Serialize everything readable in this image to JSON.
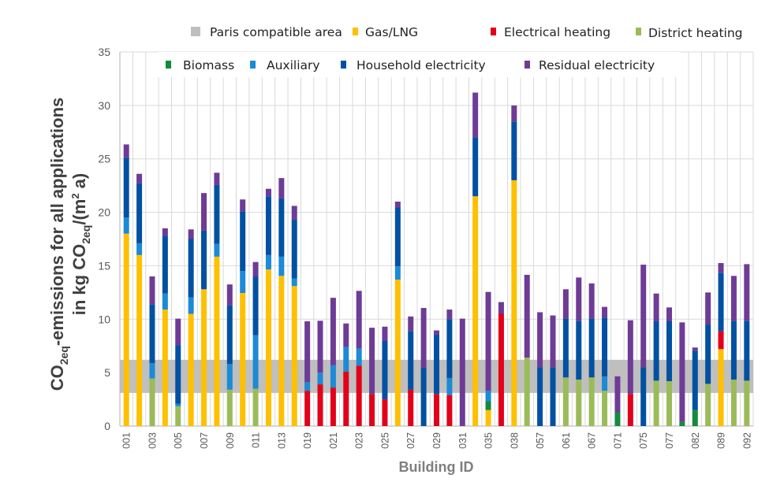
{
  "chart_data": {
    "type": "bar",
    "stacked": true,
    "xlabel": "Building ID",
    "ylabel_line1_parts": [
      "CO",
      "2eq",
      "-emissions for all applications"
    ],
    "ylabel_line2_parts": [
      "in kg CO",
      "2eq",
      "/(m",
      "2",
      " a)"
    ],
    "ylim": [
      0,
      35
    ],
    "yticks": [
      0,
      5,
      10,
      15,
      20,
      25,
      30,
      35
    ],
    "grid": true,
    "legend_placement": "top",
    "paris_compatible_area": {
      "label": "Paris compatible area",
      "range": [
        3.1,
        6.2
      ],
      "color": "#BFBFBF"
    },
    "categories": [
      "001",
      "",
      "003",
      "",
      "005",
      "",
      "007",
      "",
      "009",
      "",
      "011",
      "",
      "013",
      "",
      "019",
      "",
      "021",
      "",
      "023",
      "",
      "025",
      "",
      "027",
      "",
      "029",
      "",
      "031",
      "",
      "035",
      "",
      "038",
      "",
      "057",
      "",
      "061",
      "",
      "067",
      "",
      "071",
      "",
      "075",
      "",
      "077",
      "",
      "082",
      "",
      "089",
      "",
      "092"
    ],
    "series": [
      {
        "name": "Gas/LNG",
        "color": "#FFC000",
        "values": [
          18.0,
          16.0,
          0,
          10.9,
          0,
          10.5,
          12.8,
          15.85,
          0,
          12.45,
          0,
          14.65,
          14.05,
          13.1,
          0,
          0,
          0,
          0,
          0,
          0,
          0,
          13.7,
          0,
          0,
          0,
          0,
          0,
          21.5,
          1.5,
          0,
          23.0,
          0,
          0,
          0,
          0,
          0,
          0,
          0,
          0,
          0,
          0,
          0,
          0,
          0,
          0,
          0,
          7.2,
          0,
          0
        ]
      },
      {
        "name": "Electrical heating",
        "color": "#E2001A",
        "values": [
          0,
          0,
          0,
          0,
          0,
          0,
          0,
          0,
          0,
          0,
          0,
          0,
          0,
          0,
          3.3,
          3.9,
          3.6,
          5.1,
          5.65,
          3.0,
          2.5,
          0,
          3.4,
          0,
          3.0,
          2.9,
          0,
          0,
          0,
          10.5,
          0,
          0,
          0,
          0,
          0,
          0,
          0,
          0,
          0,
          3.0,
          0,
          0,
          0,
          0,
          0,
          0,
          1.65,
          0,
          0
        ]
      },
      {
        "name": "District heating",
        "color": "#9BBB59",
        "values": [
          0,
          0,
          4.45,
          0,
          1.85,
          0,
          0,
          0,
          3.4,
          0,
          3.5,
          0,
          0,
          0,
          0,
          0,
          0,
          0,
          0,
          0,
          0,
          0,
          0,
          0,
          0,
          0,
          0,
          0,
          0,
          0,
          0,
          6.4,
          0,
          0,
          4.55,
          4.35,
          4.55,
          3.3,
          0,
          0,
          0,
          4.25,
          4.2,
          0,
          0,
          3.95,
          0,
          4.35,
          4.25
        ]
      },
      {
        "name": "Biomass",
        "color": "#138A3C",
        "values": [
          0,
          0,
          0,
          0,
          0,
          0,
          0,
          0,
          0,
          0,
          0,
          0,
          0,
          0,
          0,
          0,
          0,
          0,
          0,
          0,
          0,
          0,
          0,
          0,
          0,
          0,
          0,
          0,
          0.85,
          0,
          0,
          0,
          0,
          0,
          0,
          0,
          0,
          0,
          1.25,
          0,
          0,
          0,
          0,
          0.4,
          1.5,
          0,
          0,
          0,
          0
        ]
      },
      {
        "name": "Auxiliary",
        "color": "#1C8AD6",
        "values": [
          1.5,
          1.1,
          1.45,
          1.5,
          0.25,
          1.55,
          0,
          1.2,
          2.4,
          2.05,
          5.0,
          1.35,
          1.8,
          0.7,
          0.8,
          1.1,
          2.1,
          2.3,
          1.6,
          0,
          0,
          1.25,
          0,
          0,
          0,
          1.6,
          0,
          0,
          0.95,
          0,
          0,
          0,
          0,
          0,
          0,
          0,
          0,
          1.35,
          0,
          0,
          0,
          0,
          0,
          0,
          0,
          0,
          0,
          0,
          0
        ]
      },
      {
        "name": "Household electricity",
        "color": "#0051A2",
        "values": [
          5.6,
          5.6,
          5.5,
          5.4,
          5.45,
          5.45,
          5.5,
          5.5,
          5.5,
          5.6,
          5.5,
          5.5,
          5.45,
          5.5,
          0,
          0,
          0,
          0,
          0,
          0,
          5.5,
          5.5,
          5.5,
          5.45,
          5.55,
          5.5,
          0,
          5.5,
          0,
          0,
          5.5,
          0,
          5.5,
          5.5,
          5.5,
          5.5,
          5.5,
          5.5,
          0,
          0,
          5.5,
          5.55,
          5.6,
          0,
          5.55,
          5.55,
          5.5,
          5.5,
          5.6
        ]
      },
      {
        "name": "Residual electricity",
        "color": "#6E3B96",
        "values": [
          1.25,
          0.9,
          2.6,
          0.7,
          2.5,
          0.9,
          3.5,
          1.15,
          1.95,
          1.1,
          1.35,
          0.7,
          1.9,
          1.3,
          5.7,
          4.85,
          6.3,
          2.2,
          5.4,
          6.2,
          1.3,
          0.55,
          1.35,
          5.6,
          0.4,
          0.9,
          10.05,
          4.2,
          9.25,
          1.1,
          1.5,
          7.75,
          5.15,
          4.85,
          2.75,
          4.05,
          3.3,
          1.0,
          3.4,
          6.9,
          9.6,
          2.6,
          1.3,
          9.3,
          0.3,
          3.0,
          0.9,
          4.2,
          5.3
        ]
      }
    ]
  }
}
